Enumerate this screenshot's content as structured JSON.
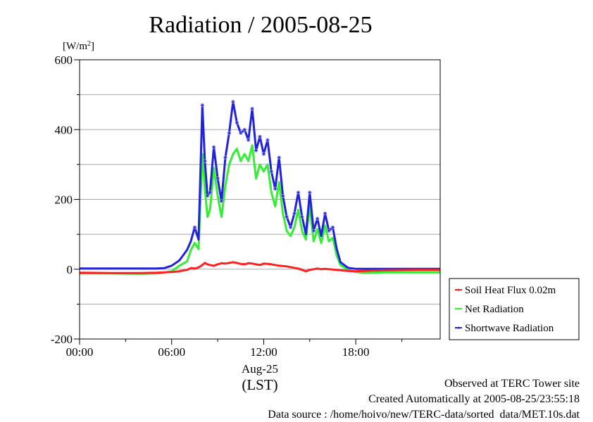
{
  "chart_data": {
    "type": "line",
    "title": "Radiation / 2005-08-25",
    "ylabel_unit": "[W/m",
    "ylabel_unit_sup": "2",
    "ylabel_unit_close": "]",
    "ylim": [
      -200,
      600
    ],
    "xlim_hours": [
      0,
      23.5
    ],
    "y_ticks": [
      "600",
      "400",
      "200",
      "0",
      "-200"
    ],
    "x_ticks": [
      "00:00",
      "06:00",
      "12:00",
      "18:00"
    ],
    "x_date": "Aug-25",
    "x_tz": "(LST)",
    "grid": true,
    "legend_position": "right-bottom",
    "x": [
      "00:00",
      "02:00",
      "04:00",
      "05:00",
      "05:30",
      "06:00",
      "06:30",
      "07:00",
      "07:15",
      "07:30",
      "07:45",
      "08:00",
      "08:10",
      "08:20",
      "08:30",
      "08:45",
      "09:00",
      "09:15",
      "09:30",
      "09:45",
      "10:00",
      "10:15",
      "10:30",
      "10:45",
      "11:00",
      "11:15",
      "11:30",
      "11:45",
      "12:00",
      "12:15",
      "12:30",
      "12:45",
      "13:00",
      "13:15",
      "13:30",
      "13:45",
      "14:00",
      "14:15",
      "14:30",
      "14:45",
      "15:00",
      "15:15",
      "15:30",
      "15:45",
      "16:00",
      "16:15",
      "16:30",
      "16:45",
      "17:00",
      "17:30",
      "18:00",
      "18:30",
      "19:00",
      "20:00",
      "22:00",
      "23:30"
    ],
    "series": [
      {
        "name": "Soil Heat Flux 0.02m",
        "color": "#ff2020",
        "values": [
          -10,
          -11,
          -11,
          -10,
          -9,
          -8,
          -6,
          -2,
          3,
          2,
          5,
          12,
          18,
          14,
          12,
          10,
          14,
          17,
          16,
          18,
          20,
          18,
          15,
          14,
          17,
          16,
          14,
          12,
          16,
          15,
          14,
          12,
          10,
          9,
          8,
          6,
          4,
          2,
          -2,
          -6,
          -2,
          0,
          2,
          0,
          1,
          0,
          -1,
          -2,
          -3,
          -5,
          -6,
          -5,
          -4,
          -3,
          -2,
          -2
        ]
      },
      {
        "name": "Net Radiation",
        "color": "#33ee33",
        "values": [
          -12,
          -12,
          -13,
          -12,
          -10,
          -6,
          10,
          22,
          55,
          75,
          58,
          330,
          230,
          150,
          170,
          290,
          210,
          150,
          240,
          300,
          330,
          345,
          310,
          330,
          310,
          355,
          260,
          300,
          280,
          300,
          220,
          180,
          250,
          160,
          110,
          95,
          120,
          170,
          110,
          85,
          180,
          80,
          115,
          75,
          125,
          80,
          90,
          40,
          12,
          -2,
          -8,
          -10,
          -10,
          -9,
          -9,
          -9
        ]
      },
      {
        "name": "Shortwave Radiation",
        "color": "#2222dd",
        "values": [
          2,
          2,
          2,
          2,
          3,
          10,
          25,
          55,
          80,
          120,
          85,
          470,
          310,
          210,
          220,
          350,
          260,
          195,
          320,
          390,
          480,
          420,
          390,
          400,
          370,
          460,
          340,
          380,
          330,
          370,
          280,
          230,
          320,
          210,
          150,
          120,
          160,
          220,
          150,
          100,
          220,
          110,
          145,
          95,
          160,
          110,
          120,
          60,
          20,
          4,
          1,
          1,
          1,
          1,
          1,
          1
        ]
      }
    ],
    "annotations": [
      "Observed at TERC Tower site",
      "Created Automatically at 2005-08-25/23:55:18",
      "Data source : /home/hoivo/new/TERC-data/sorted_data/MET.10s.dat"
    ]
  }
}
